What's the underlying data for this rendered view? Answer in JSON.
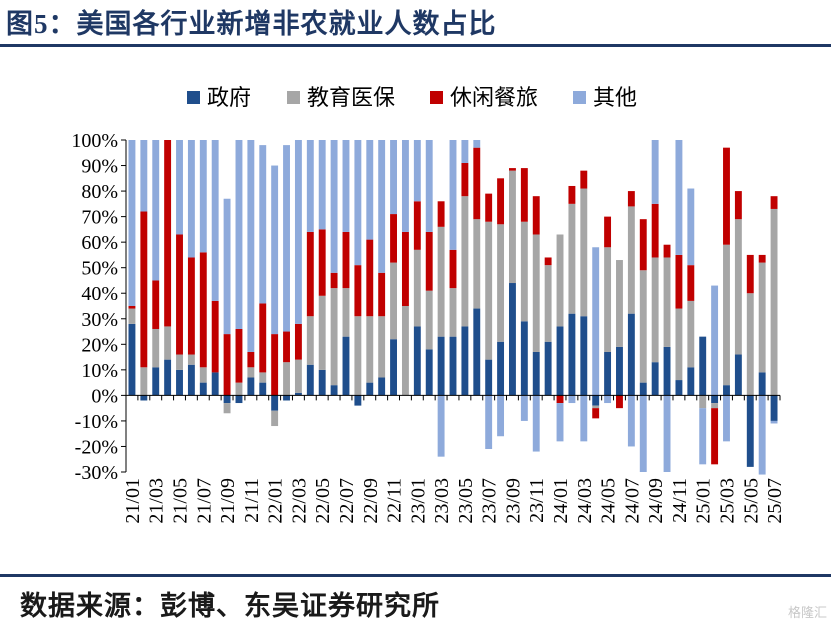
{
  "title": "图5：美国各行业新增非农就业人数占比",
  "source": "数据来源：彭博、东吴证券研究所",
  "watermark": "格隆汇",
  "colors": {
    "government": "#1f4e8c",
    "education_health": "#a6a6a6",
    "leisure_hospitality": "#c00000",
    "other": "#8eaadb",
    "accent": "#1f3864"
  },
  "chart_data": {
    "type": "bar",
    "stacked": true,
    "title": "图5：美国各行业新增非农就业人数占比",
    "ylim": [
      -30,
      100
    ],
    "y_ticks": [
      "100%",
      "90%",
      "80%",
      "70%",
      "60%",
      "50%",
      "40%",
      "30%",
      "20%",
      "10%",
      "0%",
      "-10%",
      "-20%",
      "-30%"
    ],
    "x_tick_labels": [
      "21/01",
      "21/03",
      "21/05",
      "21/07",
      "21/09",
      "21/11",
      "22/01",
      "22/03",
      "22/05",
      "22/07",
      "22/09",
      "22/11",
      "23/01",
      "23/03",
      "23/05",
      "23/07",
      "23/09",
      "23/11",
      "24/01",
      "24/03",
      "24/05",
      "24/07",
      "24/09",
      "24/11",
      "25/01",
      "25/03",
      "25/05",
      "25/07"
    ],
    "legend_position": "top",
    "categories": [
      "21/01",
      "21/02",
      "21/03",
      "21/04",
      "21/05",
      "21/06",
      "21/07",
      "21/08",
      "21/09",
      "21/10",
      "21/11",
      "21/12",
      "22/01",
      "22/02",
      "22/03",
      "22/04",
      "22/05",
      "22/06",
      "22/07",
      "22/08",
      "22/09",
      "22/10",
      "22/11",
      "22/12",
      "23/01",
      "23/02",
      "23/03",
      "23/04",
      "23/05",
      "23/06",
      "23/07",
      "23/08",
      "23/09",
      "23/10",
      "23/11",
      "23/12",
      "24/01",
      "24/02",
      "24/03",
      "24/04",
      "24/05",
      "24/06",
      "24/07",
      "24/08",
      "24/09",
      "24/10",
      "24/11",
      "24/12",
      "25/01",
      "25/02",
      "25/03",
      "25/04",
      "25/05",
      "25/06",
      "25/07"
    ],
    "series": [
      {
        "name": "政府",
        "color": "#1f4e8c",
        "values": [
          28,
          -2,
          11,
          14,
          10,
          12,
          5,
          9,
          -3,
          -3,
          7,
          5,
          -6,
          -2,
          1,
          12,
          10,
          4,
          23,
          -4,
          5,
          7,
          22,
          0,
          27,
          18,
          23,
          23,
          27,
          34,
          14,
          21,
          44,
          29,
          17,
          21,
          27,
          32,
          31,
          -4,
          17,
          19,
          32,
          5,
          13,
          19,
          6,
          11,
          23,
          -3,
          4,
          16,
          -28,
          9,
          -10
        ]
      },
      {
        "name": "教育医保",
        "color": "#a6a6a6",
        "values": [
          6,
          11,
          15,
          13,
          6,
          4,
          6,
          0,
          -4,
          5,
          4,
          4,
          -6,
          13,
          13,
          19,
          29,
          38,
          19,
          31,
          26,
          24,
          30,
          35,
          30,
          23,
          43,
          19,
          51,
          35,
          54,
          46,
          44,
          39,
          46,
          30,
          36,
          43,
          50,
          -1,
          41,
          34,
          42,
          44,
          41,
          35,
          28,
          26,
          -5,
          -2,
          55,
          53,
          40,
          43,
          73
        ]
      },
      {
        "name": "休闲餐旅",
        "color": "#c00000",
        "values": [
          1,
          61,
          19,
          73,
          47,
          38,
          45,
          28,
          24,
          21,
          6,
          27,
          24,
          12,
          14,
          33,
          26,
          6,
          22,
          20,
          30,
          17,
          19,
          29,
          19,
          23,
          10,
          15,
          13,
          28,
          11,
          18,
          1,
          21,
          15,
          3,
          -3,
          7,
          7,
          -4,
          12,
          -5,
          6,
          20,
          21,
          5,
          21,
          14,
          0,
          -22,
          38,
          11,
          15,
          3,
          5
        ]
      },
      {
        "name": "其他",
        "color": "#8eaadb",
        "values": [
          65,
          28,
          55,
          0,
          37,
          46,
          44,
          63,
          53,
          74,
          83,
          62,
          66,
          73,
          72,
          36,
          35,
          52,
          36,
          49,
          39,
          52,
          29,
          36,
          24,
          36,
          -24,
          43,
          9,
          3,
          -21,
          -16,
          0,
          -10,
          -22,
          0,
          -15,
          -3,
          -18,
          58,
          -3,
          0,
          -20,
          -30,
          25,
          -30,
          45,
          30,
          -22,
          43,
          -18,
          0,
          0,
          -31,
          -1
        ]
      }
    ]
  }
}
